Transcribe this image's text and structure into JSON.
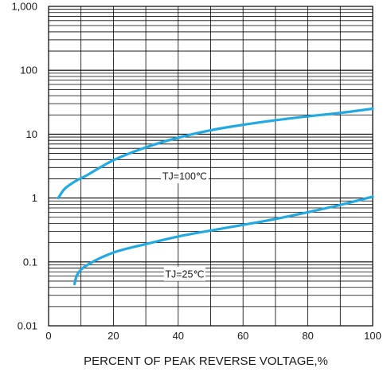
{
  "chart_data": {
    "type": "line",
    "title": "",
    "xlabel": "PERCENT OF PEAK REVERSE VOLTAGE,%",
    "ylabel": "",
    "xlim": [
      0,
      100
    ],
    "ylim": [
      0.01,
      1000
    ],
    "yscale": "log",
    "grid": true,
    "x_ticks": [
      0,
      20,
      40,
      60,
      80,
      100
    ],
    "x_tick_labels": [
      "0",
      "20",
      "40",
      "60",
      "80",
      "100"
    ],
    "y_ticks": [
      0.01,
      0.1,
      1,
      10,
      100,
      1000
    ],
    "y_tick_labels": [
      "0.01",
      "0.1",
      "1",
      "10",
      "100",
      "1,000"
    ],
    "series_color": "#22a9e1",
    "series": [
      {
        "name": "TJ=100℃",
        "x": [
          3,
          5,
          8,
          12,
          20,
          30,
          40,
          50,
          60,
          70,
          80,
          90,
          100
        ],
        "y": [
          1.0,
          1.4,
          1.8,
          2.3,
          3.9,
          6.2,
          8.8,
          11.5,
          14.0,
          16.5,
          19.0,
          21.5,
          25.0
        ]
      },
      {
        "name": "TJ=25℃",
        "x": [
          8,
          9,
          12,
          20,
          30,
          40,
          50,
          60,
          70,
          80,
          90,
          100
        ],
        "y": [
          0.045,
          0.065,
          0.09,
          0.14,
          0.19,
          0.25,
          0.31,
          0.38,
          0.47,
          0.6,
          0.78,
          1.05
        ]
      }
    ],
    "annotations": [
      {
        "text": "TJ=100℃",
        "x": 42,
        "y": 2.2
      },
      {
        "text": "TJ=25℃",
        "x": 42,
        "y": 0.065
      }
    ]
  }
}
